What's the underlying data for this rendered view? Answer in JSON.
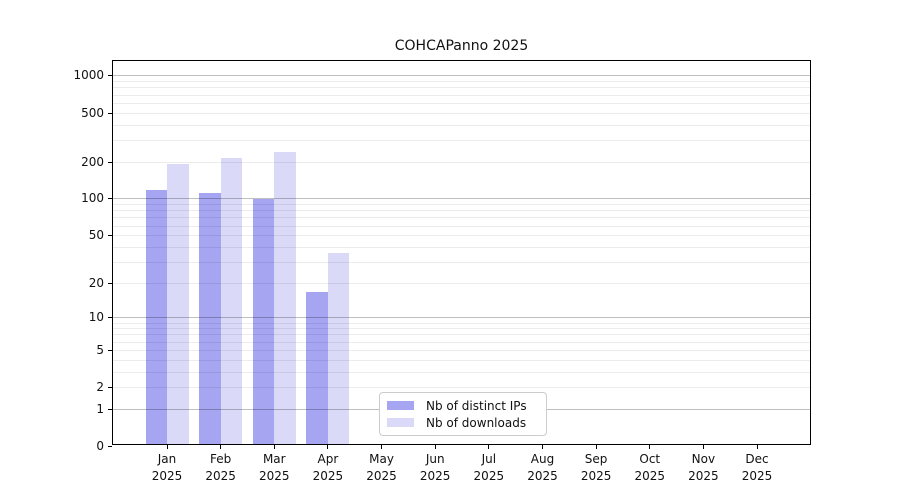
{
  "figure": {
    "background": "#ffffff"
  },
  "chart_data": {
    "type": "bar",
    "title": "COHCAPanno 2025",
    "categories": [
      "Jan 2025",
      "Feb 2025",
      "Mar 2025",
      "Apr 2025",
      "May 2025",
      "Jun 2025",
      "Jul 2025",
      "Aug 2025",
      "Sep 2025",
      "Oct 2025",
      "Nov 2025",
      "Dec 2025"
    ],
    "series": [
      {
        "name": "Nb of distinct IPs",
        "color": "#a5a5f2",
        "values": [
          114,
          107,
          96,
          16,
          0,
          0,
          0,
          0,
          0,
          0,
          0,
          0
        ]
      },
      {
        "name": "Nb of downloads",
        "color": "#dadaf8",
        "values": [
          185,
          205,
          230,
          34,
          0,
          0,
          0,
          0,
          0,
          0,
          0,
          0
        ]
      }
    ],
    "y_axis": {
      "scale": "log(1+x)",
      "ticks": [
        0,
        1,
        2,
        5,
        10,
        20,
        50,
        100,
        200,
        500,
        1000
      ],
      "major_gridlines": [
        1,
        10,
        100,
        1000
      ],
      "minor_gridline_decades": [
        1,
        10,
        100
      ],
      "top_value": 1000
    },
    "x_axis": {
      "months_shown": 12
    },
    "legend": {
      "position": "inside-bottom-center",
      "entries": [
        "Nb of distinct IPs",
        "Nb of downloads"
      ]
    },
    "grid": true
  }
}
